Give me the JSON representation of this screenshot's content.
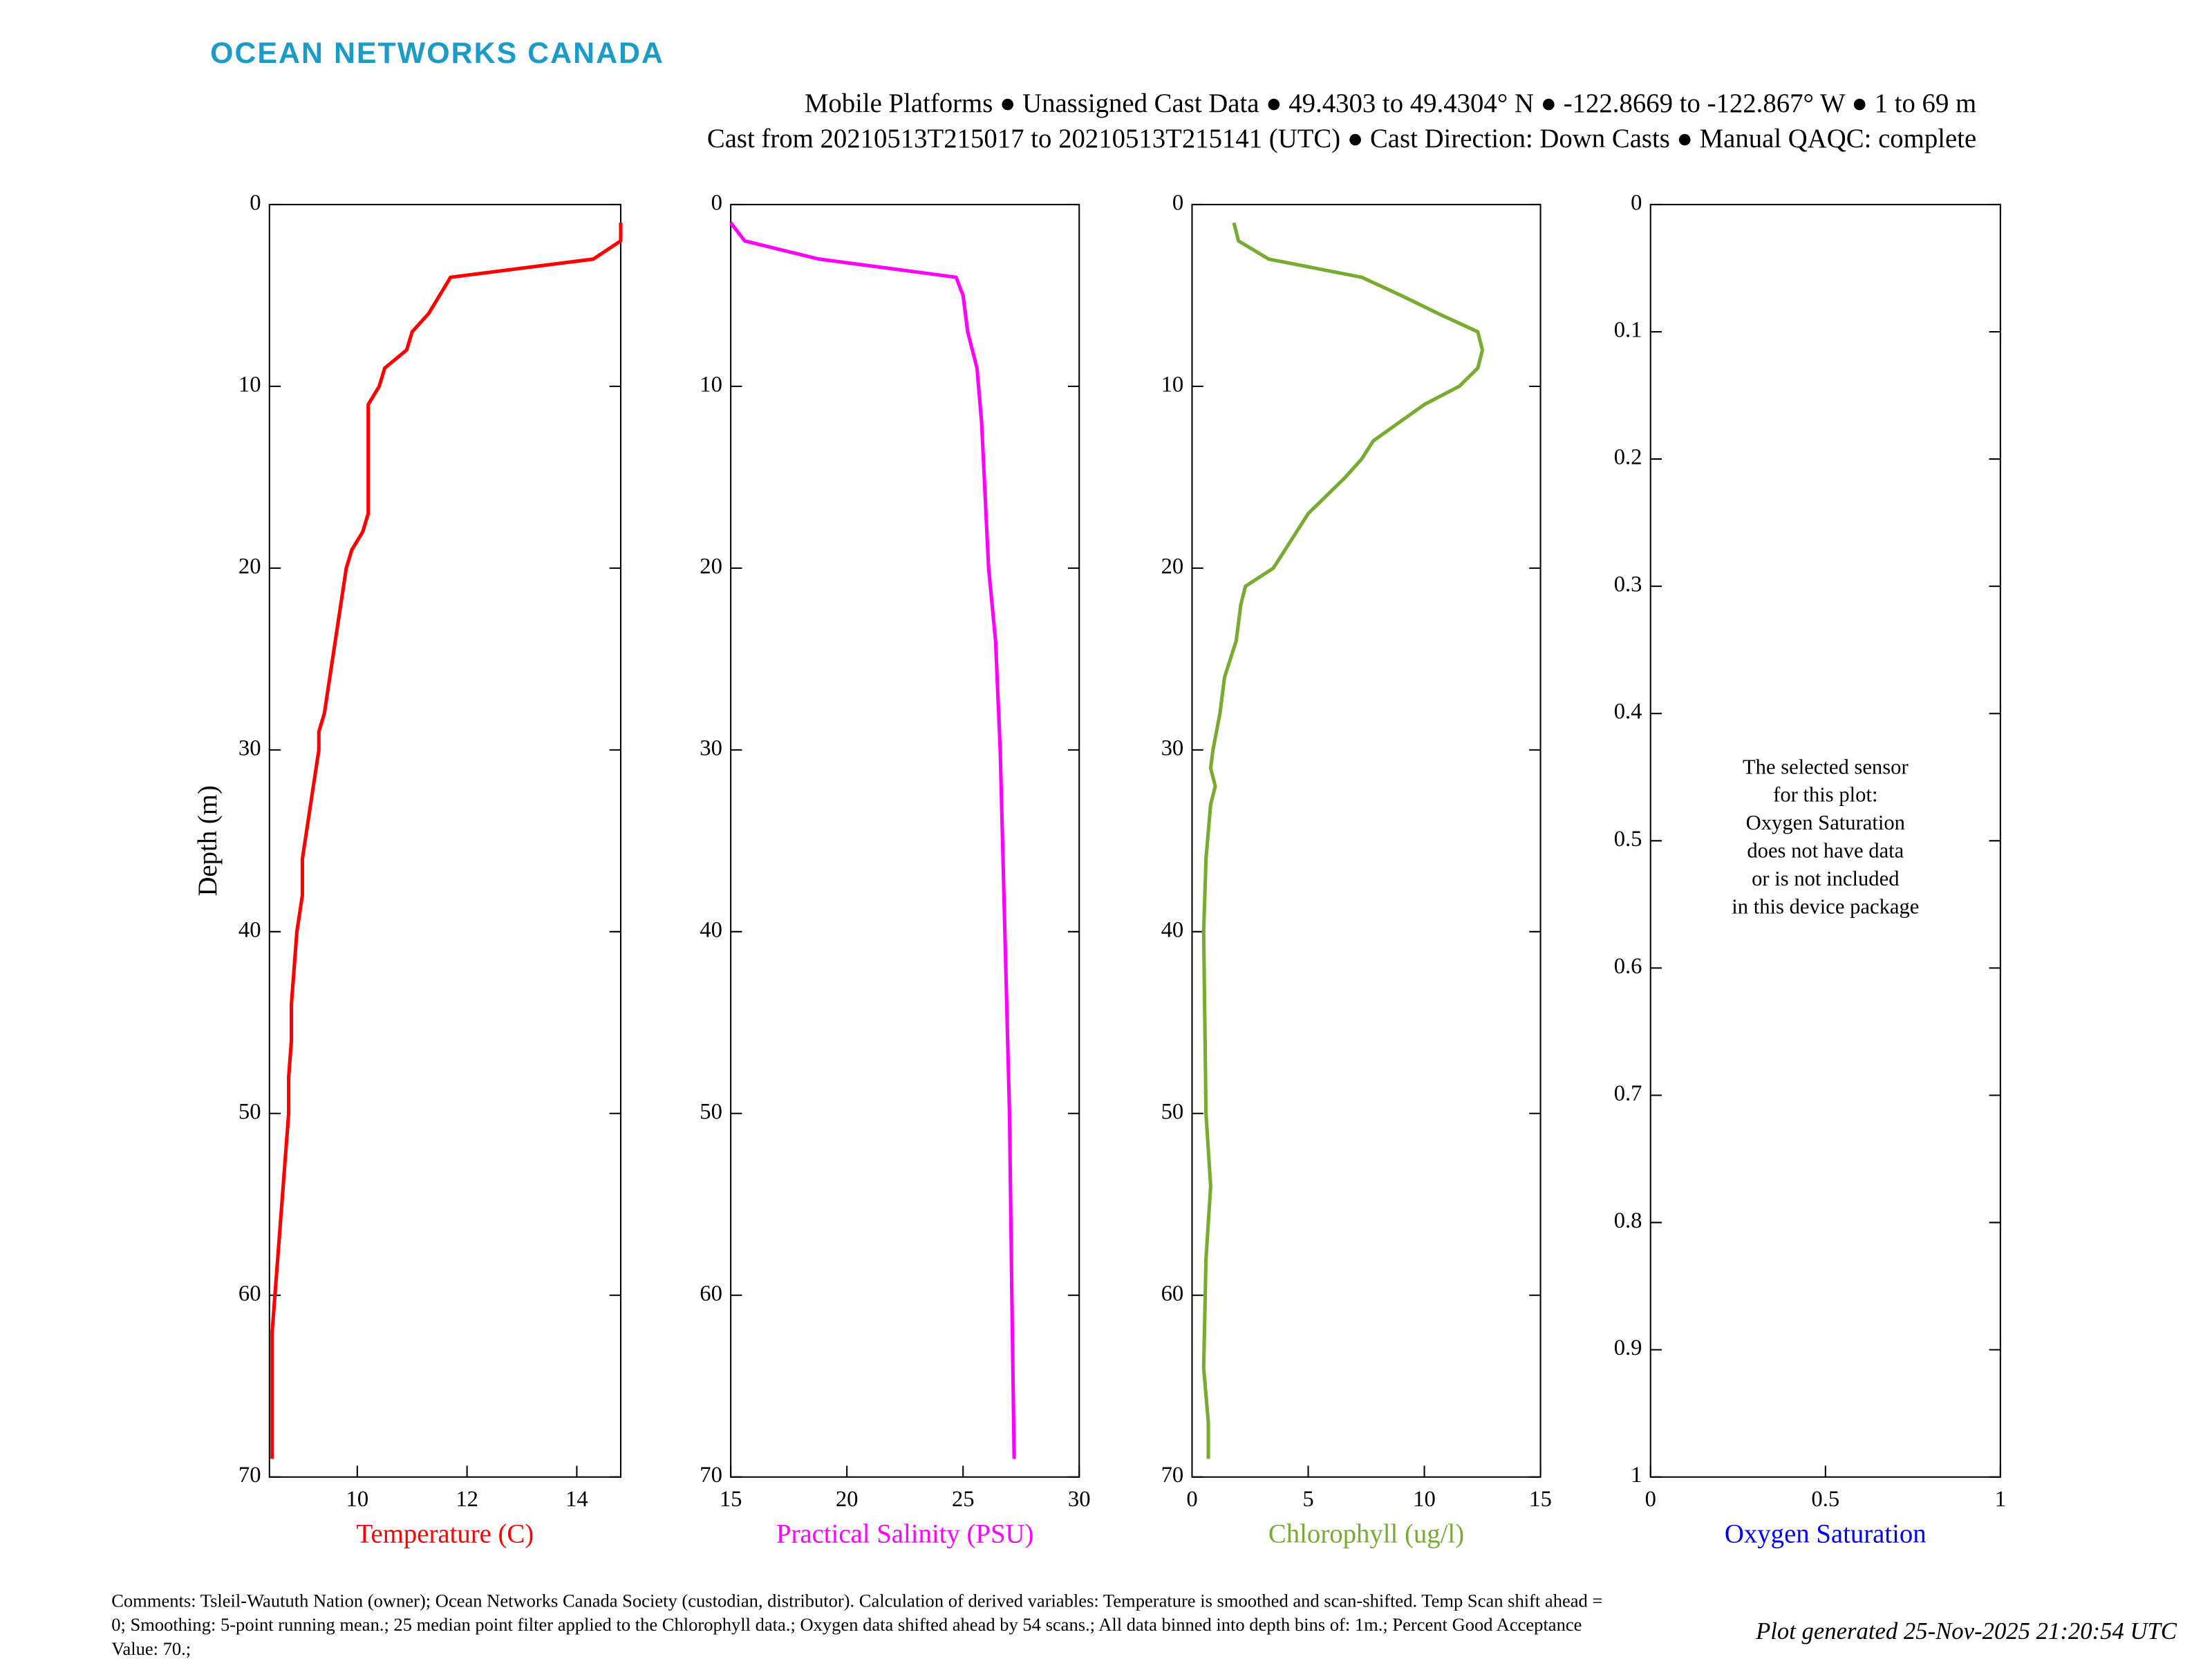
{
  "header": {
    "logo": "OCEAN NETWORKS CANADA",
    "title_lines": [
      "Mobile Platforms ● Unassigned Cast Data ● 49.4303 to 49.4304° N ● -122.8669 to -122.867° W ● 1 to 69 m",
      "Cast from 20210513T215017 to 20210513T215141 (UTC) ● Cast Direction: Down Casts ● Manual QAQC: complete"
    ]
  },
  "chart_data": [
    {
      "type": "line",
      "xlabel": "Temperature (C)",
      "ylabel": "Depth (m)",
      "color": "#ff0000",
      "y": [
        1,
        2,
        3,
        4,
        5,
        6,
        7,
        8,
        9,
        10,
        11,
        12,
        17,
        18,
        19,
        20,
        22,
        24,
        26,
        28,
        29,
        30,
        32,
        34,
        36,
        38,
        40,
        42,
        44,
        46,
        48,
        50,
        52,
        54,
        56,
        58,
        60,
        62,
        66,
        69
      ],
      "values": [
        14.8,
        14.8,
        14.3,
        11.7,
        11.5,
        11.3,
        11.0,
        10.9,
        10.5,
        10.4,
        10.2,
        10.2,
        10.2,
        10.1,
        9.9,
        9.8,
        9.7,
        9.6,
        9.5,
        9.4,
        9.3,
        9.3,
        9.2,
        9.1,
        9.0,
        9.0,
        8.9,
        8.85,
        8.8,
        8.8,
        8.75,
        8.75,
        8.7,
        8.65,
        8.6,
        8.55,
        8.5,
        8.45,
        8.45,
        8.45
      ],
      "xlim": [
        8.4,
        14.8
      ],
      "xticks": [
        10,
        12,
        14
      ],
      "ylim": [
        0,
        70
      ],
      "yticks": [
        0,
        10,
        20,
        30,
        40,
        50,
        60,
        70
      ]
    },
    {
      "type": "line",
      "xlabel": "Practical Salinity (PSU)",
      "color": "#ff00ff",
      "y": [
        1,
        2,
        3,
        4,
        5,
        7,
        9,
        12,
        20,
        24,
        30,
        40,
        50,
        60,
        69
      ],
      "values": [
        15.0,
        15.6,
        18.8,
        24.7,
        25.0,
        25.2,
        25.6,
        25.8,
        26.1,
        26.4,
        26.6,
        26.8,
        27.0,
        27.1,
        27.2
      ],
      "xlim": [
        15,
        30
      ],
      "xticks": [
        15,
        20,
        25,
        30
      ],
      "ylim": [
        0,
        70
      ],
      "yticks": [
        0,
        10,
        20,
        30,
        40,
        50,
        60,
        70
      ]
    },
    {
      "type": "line",
      "xlabel": "Chlorophyll (ug/l)",
      "color": "#77ac30",
      "y": [
        1,
        2,
        3,
        4,
        5,
        6,
        7,
        8,
        9,
        10,
        11,
        13,
        14,
        15,
        17,
        19,
        20,
        21,
        22,
        24,
        26,
        28,
        30,
        31,
        32,
        33,
        36,
        40,
        50,
        54,
        58,
        64,
        67,
        69
      ],
      "values": [
        1.8,
        2.0,
        3.3,
        7.3,
        9.0,
        10.6,
        12.3,
        12.5,
        12.3,
        11.5,
        10.0,
        7.8,
        7.3,
        6.6,
        5.0,
        4.0,
        3.5,
        2.3,
        2.1,
        1.9,
        1.4,
        1.2,
        0.9,
        0.8,
        1.0,
        0.8,
        0.6,
        0.5,
        0.6,
        0.8,
        0.6,
        0.5,
        0.7,
        0.7
      ],
      "xlim": [
        0,
        15
      ],
      "xticks": [
        0,
        5,
        10,
        15
      ],
      "ylim": [
        0,
        70
      ],
      "yticks": [
        0,
        10,
        20,
        30,
        40,
        50,
        60,
        70
      ]
    },
    {
      "type": "line",
      "xlabel": "Oxygen Saturation",
      "color": "#0000ff",
      "note": [
        "The selected sensor",
        "for this plot:",
        "Oxygen Saturation",
        "does not have data",
        "or is not included",
        "in this device package"
      ],
      "xlim": [
        0,
        1
      ],
      "xticks": [
        0,
        0.5,
        1
      ],
      "ylim": [
        0,
        1
      ],
      "yticks": [
        0,
        0.1,
        0.2,
        0.3,
        0.4,
        0.5,
        0.6,
        0.7,
        0.8,
        0.9,
        1
      ]
    }
  ],
  "footer": {
    "comments": "Comments: Tsleil-Waututh Nation (owner); Ocean Networks Canada Society (custodian, distributor). Calculation of derived variables: Temperature is smoothed and scan-shifted. Temp Scan shift ahead = 0; Smoothing: 5-point running mean.; 25 median point filter applied to the Chlorophyll data.; Oxygen data shifted ahead by 54 scans.; All data binned into depth bins of: 1m.; Percent Good Acceptance Value: 70.;",
    "generated": "Plot generated 25-Nov-2025 21:20:54 UTC"
  }
}
